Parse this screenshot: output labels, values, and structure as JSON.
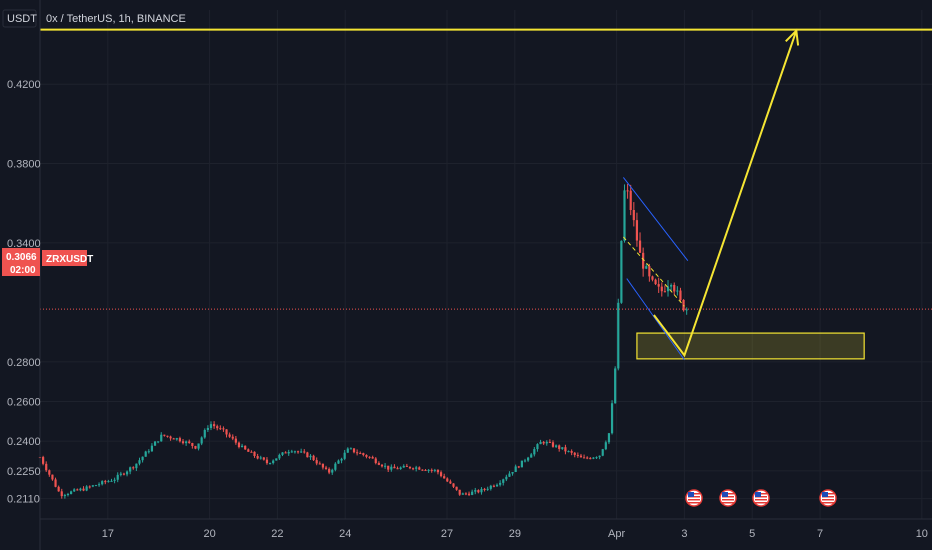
{
  "header": {
    "currency_badge": "USDT",
    "symbol_title": "0x / TetherUS, 1h, BINANCE"
  },
  "price_label": {
    "price": "0.3066",
    "countdown": "02:00",
    "symbol": "ZRXUSDT"
  },
  "colors": {
    "background": "#131722",
    "grid": "#1e222d",
    "up_candle": "#26a69a",
    "down_candle": "#ef5350",
    "annotation_yellow": "#f5e533",
    "channel_blue": "#2962ff",
    "price_line": "#ef5350"
  },
  "event_icons": [
    "us-flag-icon",
    "us-flag-icon",
    "us-flag-icon",
    "us-flag-icon"
  ],
  "chart_data": {
    "type": "candlestick",
    "title": "0x / TetherUS, 1h, BINANCE",
    "ylim": [
      0.2,
      0.45
    ],
    "y_ticks": [
      "0.4200",
      "0.3800",
      "0.3400",
      "0.2800",
      "0.2600",
      "0.2400",
      "0.2250",
      "0.2110"
    ],
    "y_tick_values": [
      0.42,
      0.38,
      0.34,
      0.28,
      0.26,
      0.24,
      0.225,
      0.211
    ],
    "x_ticks": [
      "17",
      "20",
      "22",
      "24",
      "27",
      "29",
      "Apr",
      "3",
      "5",
      "7",
      "10"
    ],
    "x_tick_days": [
      17,
      20,
      22,
      24,
      27,
      29,
      32,
      34,
      36,
      38,
      41
    ],
    "xlim_days": [
      15.0,
      41.3
    ],
    "last_price": 0.3066,
    "close_path": [
      [
        15.0,
        0.232
      ],
      [
        15.6,
        0.213
      ],
      [
        16.3,
        0.216
      ],
      [
        17.2,
        0.221
      ],
      [
        17.8,
        0.228
      ],
      [
        18.6,
        0.243
      ],
      [
        19.1,
        0.241
      ],
      [
        19.6,
        0.237
      ],
      [
        20.0,
        0.249
      ],
      [
        20.4,
        0.245
      ],
      [
        21.0,
        0.236
      ],
      [
        21.7,
        0.229
      ],
      [
        22.4,
        0.236
      ],
      [
        23.0,
        0.232
      ],
      [
        23.5,
        0.224
      ],
      [
        24.1,
        0.236
      ],
      [
        24.7,
        0.232
      ],
      [
        25.3,
        0.226
      ],
      [
        26.0,
        0.227
      ],
      [
        26.7,
        0.225
      ],
      [
        27.4,
        0.213
      ],
      [
        28.0,
        0.215
      ],
      [
        28.5,
        0.219
      ],
      [
        29.2,
        0.229
      ],
      [
        29.8,
        0.24
      ],
      [
        30.4,
        0.236
      ],
      [
        31.0,
        0.231
      ],
      [
        31.5,
        0.233
      ],
      [
        31.8,
        0.245
      ],
      [
        32.0,
        0.285
      ],
      [
        32.1,
        0.33
      ],
      [
        32.25,
        0.37
      ],
      [
        32.45,
        0.355
      ],
      [
        32.7,
        0.333
      ],
      [
        33.0,
        0.32
      ],
      [
        33.3,
        0.315
      ],
      [
        33.6,
        0.322
      ],
      [
        33.9,
        0.309
      ],
      [
        34.1,
        0.3066
      ]
    ],
    "annotations": {
      "resistance_line_price": 0.4475,
      "support_zone": {
        "x0_day": 32.6,
        "x1_day": 39.3,
        "y_low": 0.2815,
        "y_high": 0.2945
      },
      "projection_path": [
        [
          33.1,
          0.3036
        ],
        [
          34.0,
          0.2833
        ],
        [
          37.3,
          0.447
        ]
      ],
      "channel_upper": [
        [
          32.2,
          0.373
        ],
        [
          34.1,
          0.331
        ]
      ],
      "channel_lower": [
        [
          32.3,
          0.322
        ],
        [
          34.0,
          0.281
        ]
      ],
      "dashed_midline": [
        [
          32.2,
          0.343
        ],
        [
          34.0,
          0.308
        ]
      ]
    }
  }
}
